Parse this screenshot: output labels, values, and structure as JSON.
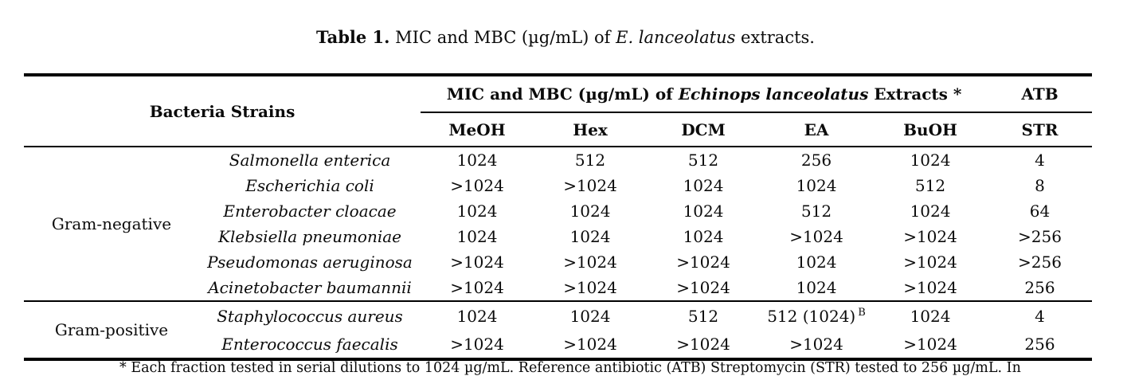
{
  "title": {
    "label": "Table 1.",
    "mid": " MIC and MBC (µg/mL) of ",
    "species": "E. lanceolatus",
    "suffix": " extracts."
  },
  "table": {
    "header": {
      "strains": "Bacteria Strains",
      "group_pre": "MIC and MBC (µg/mL) of ",
      "group_species": "Echinops lanceolatus",
      "group_post": " Extracts *",
      "atb": "ATB",
      "cols": [
        "MeOH",
        "Hex",
        "DCM",
        "EA",
        "BuOH"
      ],
      "atb_col": "STR"
    },
    "sections": [
      {
        "group": "Gram-negative",
        "rows": [
          {
            "strain": "Salmonella enterica",
            "values": [
              "1024",
              "512",
              "512",
              "256",
              "1024",
              "4"
            ]
          },
          {
            "strain": "Escherichia coli",
            "values": [
              ">1024",
              ">1024",
              "1024",
              "1024",
              "512",
              "8"
            ]
          },
          {
            "strain": "Enterobacter cloacae",
            "values": [
              "1024",
              "1024",
              "1024",
              "512",
              "1024",
              "64"
            ]
          },
          {
            "strain": "Klebsiella pneumoniae",
            "values": [
              "1024",
              "1024",
              "1024",
              ">1024",
              ">1024",
              ">256"
            ]
          },
          {
            "strain": "Pseudomonas aeruginosa",
            "values": [
              ">1024",
              ">1024",
              ">1024",
              "1024",
              ">1024",
              ">256"
            ]
          },
          {
            "strain": "Acinetobacter baumannii",
            "values": [
              ">1024",
              ">1024",
              ">1024",
              "1024",
              ">1024",
              "256"
            ]
          }
        ]
      },
      {
        "group": "Gram-positive",
        "rows": [
          {
            "strain": "Staphylococcus aureus",
            "values": [
              "1024",
              "1024",
              "512",
              "512 (1024)^B",
              "1024",
              "4"
            ]
          },
          {
            "strain": "Enterococcus faecalis",
            "values": [
              ">1024",
              ">1024",
              ">1024",
              ">1024",
              ">1024",
              "256"
            ]
          }
        ]
      }
    ]
  },
  "footnote": {
    "text": "* Each fraction tested in serial dilutions to 1024 µg/mL. Reference antibiotic (ATB) Streptomycin (STR) tested to 256 µg/mL. In"
  },
  "colors": {
    "text": "#0b0b0b",
    "background": "#ffffff",
    "rule": "#000000"
  }
}
